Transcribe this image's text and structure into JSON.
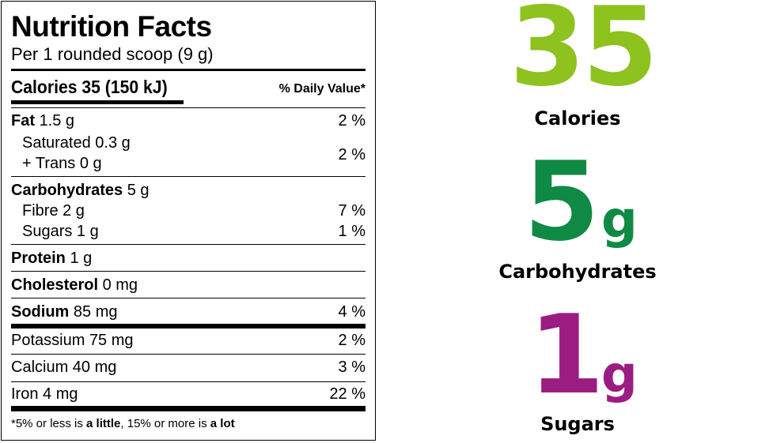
{
  "label": {
    "title": "Nutrition Facts",
    "serving": "Per 1 rounded scoop (9 g)",
    "calories_line": "Calories 35 (150 kJ)",
    "daily_value_header": "% Daily Value*",
    "fat": {
      "name": "Fat",
      "amount": "1.5 g",
      "pct": "2 %"
    },
    "saturated": "Saturated 0.3 g",
    "trans": "+ Trans 0 g",
    "sat_trans_pct": "2 %",
    "carbohydrates": {
      "name": "Carbohydrates",
      "amount": "5 g"
    },
    "fibre": {
      "label": "Fibre 2 g",
      "pct": "7 %"
    },
    "sugars": {
      "label": "Sugars 1 g",
      "pct": "1 %"
    },
    "protein": {
      "name": "Protein",
      "amount": "1 g"
    },
    "cholesterol": {
      "name": "Cholesterol",
      "amount": "0 mg"
    },
    "sodium": {
      "name": "Sodium",
      "amount": "85 mg",
      "pct": "4 %"
    },
    "potassium": {
      "label": "Potassium 75 mg",
      "pct": "2 %"
    },
    "calcium": {
      "label": "Calcium 40 mg",
      "pct": "3 %"
    },
    "iron": {
      "label": "Iron 4 mg",
      "pct": "22 %"
    },
    "footnote": {
      "pre": "*5% or less is ",
      "little": "a little",
      "mid": ", 15% or more is ",
      "lot": "a lot"
    }
  },
  "highlights": [
    {
      "value": "35",
      "unit": "",
      "caption": "Calories",
      "color": "#8dc21f"
    },
    {
      "value": "5",
      "unit": "g",
      "caption": "Carbohydrates",
      "color": "#0f8a45"
    },
    {
      "value": "1",
      "unit": "g",
      "caption": "Sugars",
      "color": "#9b1d82"
    }
  ]
}
